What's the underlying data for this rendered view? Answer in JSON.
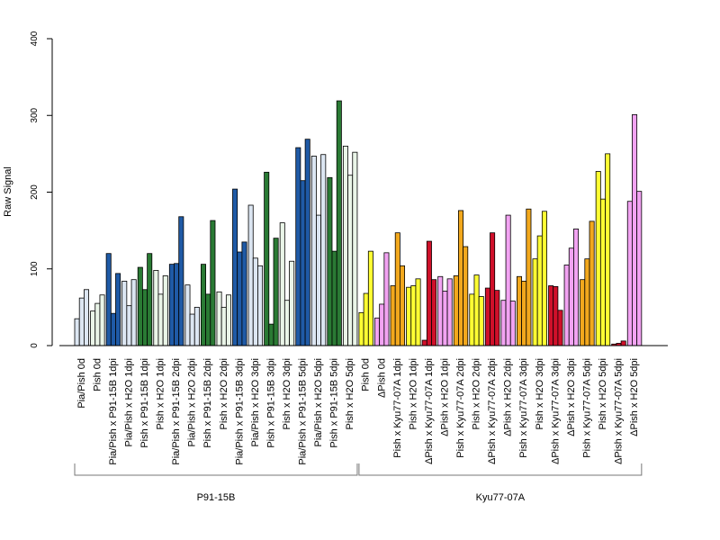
{
  "chart_data": {
    "type": "bar",
    "ylabel": "Raw Signal",
    "ylim": [
      0,
      400
    ],
    "yticks": [
      0,
      100,
      200,
      300,
      400
    ],
    "bar_stroke": "#000000",
    "groups": [
      {
        "label": "Pia/Pish 0d",
        "color": "#DCE6F2",
        "values": [
          35,
          62,
          73
        ]
      },
      {
        "label": "Pish 0d",
        "color": "#EAF5E8",
        "values": [
          45,
          55,
          66
        ]
      },
      {
        "label": "Pia/Pish x P91-15B 1dpi",
        "color": "#1F5AA6",
        "values": [
          120,
          42,
          94
        ]
      },
      {
        "label": "Pia/Pish x H2O 1dpi",
        "color": "#DCE6F2",
        "values": [
          84,
          52,
          86
        ]
      },
      {
        "label": "Pish x P91-15B 1dpi",
        "color": "#2A7A34",
        "values": [
          102,
          73,
          120
        ]
      },
      {
        "label": "Pish x H2O 1dpi",
        "color": "#EAF5E8",
        "values": [
          98,
          67,
          91
        ]
      },
      {
        "label": "Pia/Pish x P91-15B 2dpi",
        "color": "#1F5AA6",
        "values": [
          106,
          107,
          168
        ]
      },
      {
        "label": "Pia/Pish x H2O 2dpi",
        "color": "#DCE6F2",
        "values": [
          79,
          41,
          50
        ]
      },
      {
        "label": "Pish x P91-15B 2dpi",
        "color": "#2A7A34",
        "values": [
          106,
          67,
          163
        ]
      },
      {
        "label": "Pish x H2O 2dpi",
        "color": "#EAF5E8",
        "values": [
          70,
          50,
          66
        ]
      },
      {
        "label": "Pia/Pish x P91-15B 3dpi",
        "color": "#1F5AA6",
        "values": [
          204,
          122,
          135
        ]
      },
      {
        "label": "Pia/Pish x H2O 3dpi",
        "color": "#DCE6F2",
        "values": [
          183,
          114,
          104
        ]
      },
      {
        "label": "Pish x P91-15B 3dpi",
        "color": "#2A7A34",
        "values": [
          226,
          28,
          140
        ]
      },
      {
        "label": "Pish x H2O 3dpi",
        "color": "#EAF5E8",
        "values": [
          160,
          59,
          110
        ]
      },
      {
        "label": "Pia/Pish x P91-15B 5dpi",
        "color": "#1F5AA6",
        "values": [
          258,
          215,
          269
        ]
      },
      {
        "label": "Pia/Pish x H2O 5dpi",
        "color": "#DCE6F2",
        "values": [
          247,
          170,
          249
        ]
      },
      {
        "label": "Pish x P91-15B 5dpi",
        "color": "#2A7A34",
        "values": [
          219,
          123,
          319
        ]
      },
      {
        "label": "Pish x H2O 5dpi",
        "color": "#EAF5E8",
        "values": [
          260,
          222,
          252
        ]
      },
      {
        "label": "Pish 0d",
        "color": "#FFFF33",
        "values": [
          43,
          68,
          123
        ]
      },
      {
        "label": "ΔPish 0d",
        "color": "#F2A3F2",
        "values": [
          36,
          54,
          121
        ]
      },
      {
        "label": "Pish x Kyu77-07A 1dpi",
        "color": "#F2A81D",
        "values": [
          78,
          147,
          104
        ]
      },
      {
        "label": "Pish x H2O 1dpi",
        "color": "#FFFF33",
        "values": [
          76,
          78,
          87
        ]
      },
      {
        "label": "ΔPish x Kyu77-07A 1dpi",
        "color": "#D0102A",
        "values": [
          7,
          136,
          86
        ]
      },
      {
        "label": "ΔPish x H2O 1dpi",
        "color": "#F2A3F2",
        "values": [
          90,
          71,
          87
        ]
      },
      {
        "label": "Pish x Kyu77-07A 2dpi",
        "color": "#F2A81D",
        "values": [
          91,
          176,
          129
        ]
      },
      {
        "label": "Pish x H2O 2dpi",
        "color": "#FFFF33",
        "values": [
          67,
          92,
          64
        ]
      },
      {
        "label": "ΔPish x Kyu77-07A 2dpi",
        "color": "#D0102A",
        "values": [
          75,
          147,
          72
        ]
      },
      {
        "label": "ΔPish x H2O 2dpi",
        "color": "#F2A3F2",
        "values": [
          59,
          170,
          58
        ]
      },
      {
        "label": "Pish x Kyu77-07A 3dpi",
        "color": "#F2A81D",
        "values": [
          90,
          84,
          178
        ]
      },
      {
        "label": "Pish x H2O 3dpi",
        "color": "#FFFF33",
        "values": [
          113,
          143,
          175
        ]
      },
      {
        "label": "ΔPish x Kyu77-07A 3dpi",
        "color": "#D0102A",
        "values": [
          78,
          77,
          46
        ]
      },
      {
        "label": "ΔPish x H2O 3dpi",
        "color": "#F2A3F2",
        "values": [
          105,
          127,
          152
        ]
      },
      {
        "label": "Pish x Kyu77-07A 5dpi",
        "color": "#F2A81D",
        "values": [
          86,
          113,
          162
        ]
      },
      {
        "label": "Pish x H2O 5dpi",
        "color": "#FFFF33",
        "values": [
          227,
          191,
          250
        ]
      },
      {
        "label": "ΔPish x Kyu77-07A 5dpi",
        "color": "#D0102A",
        "values": [
          2,
          3,
          6
        ]
      },
      {
        "label": "ΔPish x H2O 5dpi",
        "color": "#F2A3F2",
        "values": [
          188,
          301,
          201
        ]
      }
    ],
    "brackets": [
      {
        "label": "P91-15B",
        "from_group": 0,
        "to_group": 17
      },
      {
        "label": "Kyu77-07A",
        "from_group": 18,
        "to_group": 35
      }
    ]
  }
}
